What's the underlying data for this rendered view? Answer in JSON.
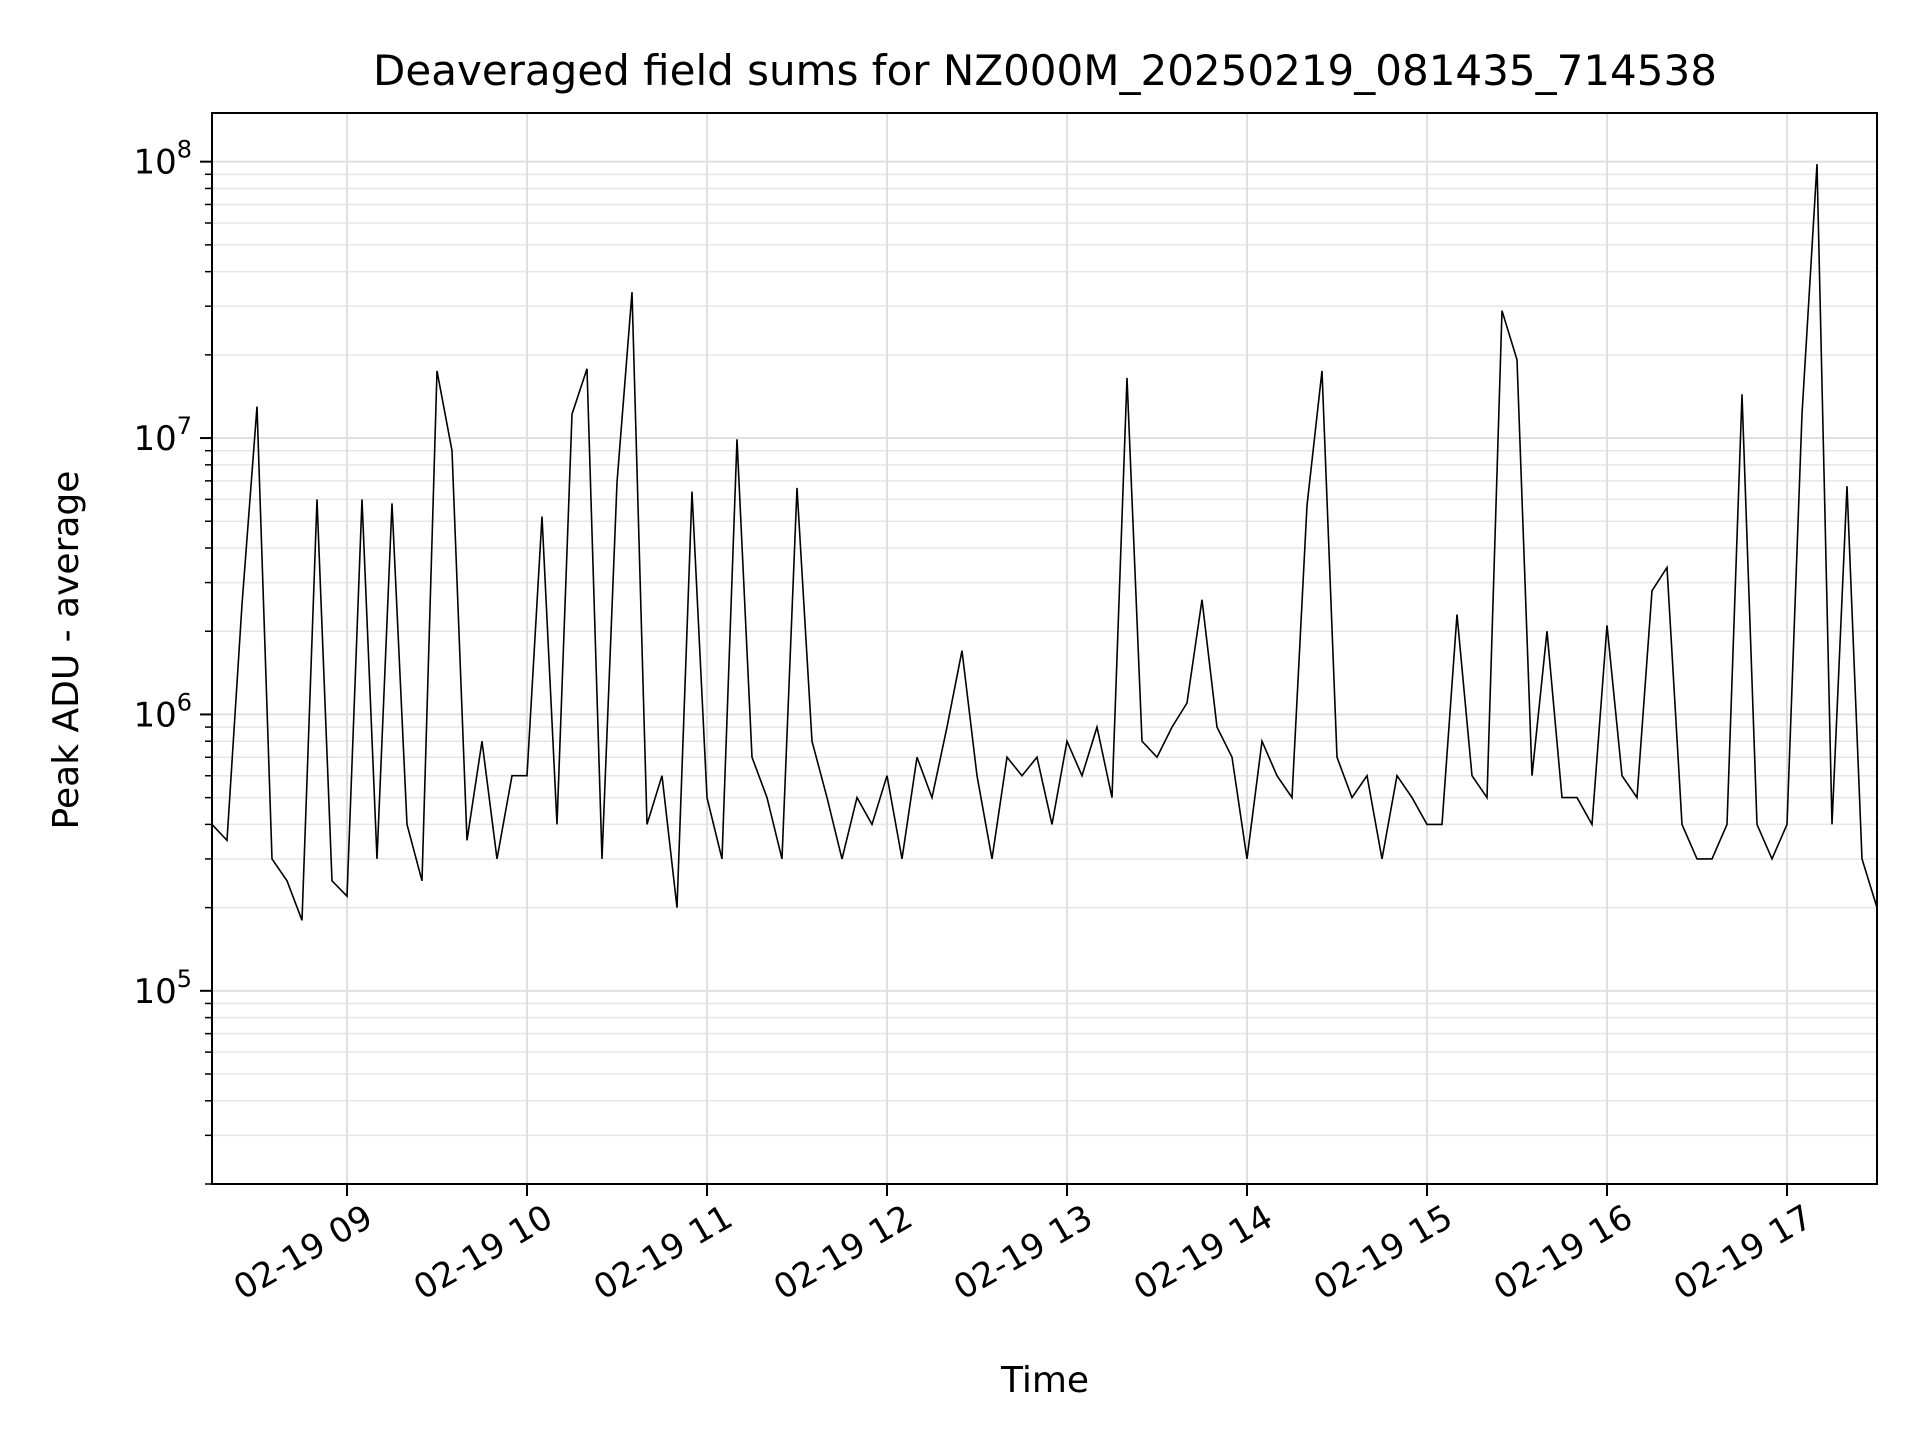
{
  "chart_data": {
    "type": "line",
    "title": "Deaveraged field sums for NZ000M_20250219_081435_714538",
    "xlabel": "Time",
    "ylabel": "Peak ADU - average",
    "yscale": "log",
    "xlim": [
      "02-19 08:15",
      "02-19 17:30"
    ],
    "ylim": [
      20000,
      150000000
    ],
    "grid": true,
    "legend": "none",
    "line_color": "#000000",
    "x_ticks": [
      {
        "value": "02-19 09:00",
        "label": "02-19 09"
      },
      {
        "value": "02-19 10:00",
        "label": "02-19 10"
      },
      {
        "value": "02-19 11:00",
        "label": "02-19 11"
      },
      {
        "value": "02-19 12:00",
        "label": "02-19 12"
      },
      {
        "value": "02-19 13:00",
        "label": "02-19 13"
      },
      {
        "value": "02-19 14:00",
        "label": "02-19 14"
      },
      {
        "value": "02-19 15:00",
        "label": "02-19 15"
      },
      {
        "value": "02-19 16:00",
        "label": "02-19 16"
      },
      {
        "value": "02-19 17:00",
        "label": "02-19 17"
      }
    ],
    "y_ticks": [
      {
        "value": 100000,
        "base": "10",
        "exp": "5"
      },
      {
        "value": 1000000,
        "base": "10",
        "exp": "6"
      },
      {
        "value": 10000000,
        "base": "10",
        "exp": "7"
      },
      {
        "value": 100000000,
        "base": "10",
        "exp": "8"
      }
    ],
    "series": [
      {
        "x": [
          "08:15",
          "08:20",
          "08:25",
          "08:30",
          "08:35",
          "08:40",
          "08:45",
          "08:50",
          "08:55",
          "09:00",
          "09:05",
          "09:10",
          "09:15",
          "09:20",
          "09:25",
          "09:30",
          "09:35",
          "09:40",
          "09:45",
          "09:50",
          "09:55",
          "10:00",
          "10:05",
          "10:10",
          "10:15",
          "10:20",
          "10:25",
          "10:30",
          "10:35",
          "10:40",
          "10:45",
          "10:50",
          "10:55",
          "11:00",
          "11:05",
          "11:10",
          "11:15",
          "11:20",
          "11:25",
          "11:30",
          "11:35",
          "11:40",
          "11:45",
          "11:50",
          "11:55",
          "12:00",
          "12:05",
          "12:10",
          "12:15",
          "12:20",
          "12:25",
          "12:30",
          "12:35",
          "12:40",
          "12:45",
          "12:50",
          "12:55",
          "13:00",
          "13:05",
          "13:10",
          "13:15",
          "13:20",
          "13:25",
          "13:30",
          "13:35",
          "13:40",
          "13:45",
          "13:50",
          "13:55",
          "14:00",
          "14:05",
          "14:10",
          "14:15",
          "14:20",
          "14:25",
          "14:30",
          "14:35",
          "14:40",
          "14:45",
          "14:50",
          "14:55",
          "15:00",
          "15:05",
          "15:10",
          "15:15",
          "15:20",
          "15:25",
          "15:30",
          "15:35",
          "15:40",
          "15:45",
          "15:50",
          "15:55",
          "16:00",
          "16:05",
          "16:10",
          "16:15",
          "16:20",
          "16:25",
          "16:30",
          "16:35",
          "16:40",
          "16:45",
          "16:50",
          "16:55",
          "17:00",
          "17:05",
          "17:10",
          "17:15",
          "17:20",
          "17:25",
          "17:30"
        ],
        "y": [
          400000,
          350000,
          2500000,
          13000000,
          300000,
          250000,
          180000,
          6000000,
          250000,
          220000,
          6000000,
          300000,
          5800000,
          400000,
          250000,
          17500000,
          9000000,
          350000,
          800000,
          300000,
          600000,
          600000,
          5200000,
          400000,
          12200000,
          17800000,
          300000,
          6900000,
          33700000,
          400000,
          600000,
          200000,
          6400000,
          500000,
          300000,
          9900000,
          700000,
          500000,
          300000,
          6600000,
          800000,
          500000,
          300000,
          500000,
          400000,
          600000,
          300000,
          700000,
          500000,
          900000,
          1700000,
          600000,
          300000,
          700000,
          600000,
          700000,
          400000,
          800000,
          600000,
          900000,
          500000,
          16500000,
          800000,
          700000,
          900000,
          1100000,
          2600000,
          900000,
          700000,
          300000,
          800000,
          600000,
          500000,
          5700000,
          17500000,
          700000,
          500000,
          600000,
          300000,
          600000,
          500000,
          400000,
          400000,
          2300000,
          600000,
          500000,
          28900000,
          19200000,
          600000,
          2000000,
          500000,
          500000,
          400000,
          2100000,
          600000,
          500000,
          2800000,
          3400000,
          400000,
          300000,
          300000,
          400000,
          14400000,
          400000,
          300000,
          400000,
          12200000,
          98000000,
          400000,
          6700000,
          300000,
          200000
        ]
      }
    ]
  }
}
